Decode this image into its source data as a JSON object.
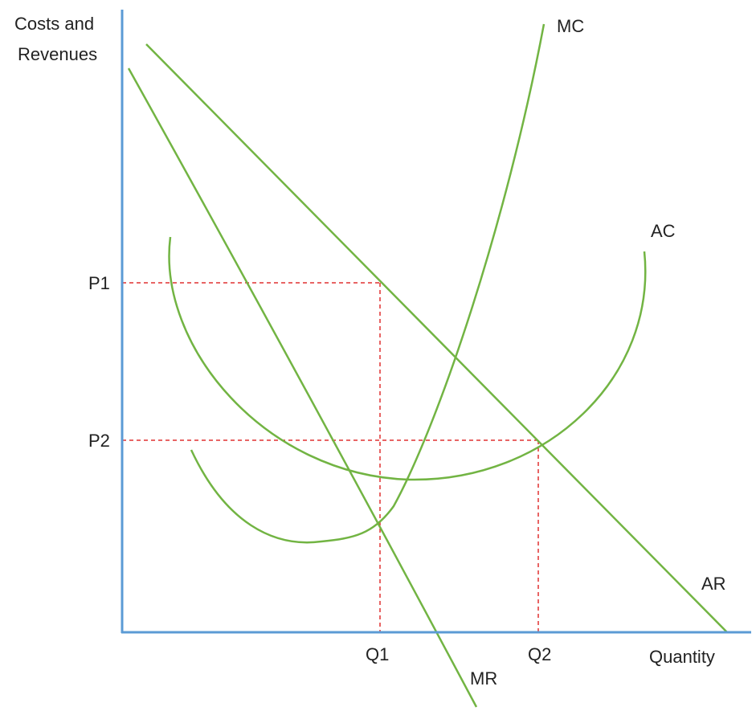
{
  "axes": {
    "y_label": [
      "Costs and",
      "Revenues"
    ],
    "x_label": "Quantity"
  },
  "curves": {
    "mc": "MC",
    "ac": "AC",
    "ar": "AR",
    "mr": "MR"
  },
  "prices": [
    "P1",
    "P2"
  ],
  "quantities": [
    "Q1",
    "Q2"
  ]
}
